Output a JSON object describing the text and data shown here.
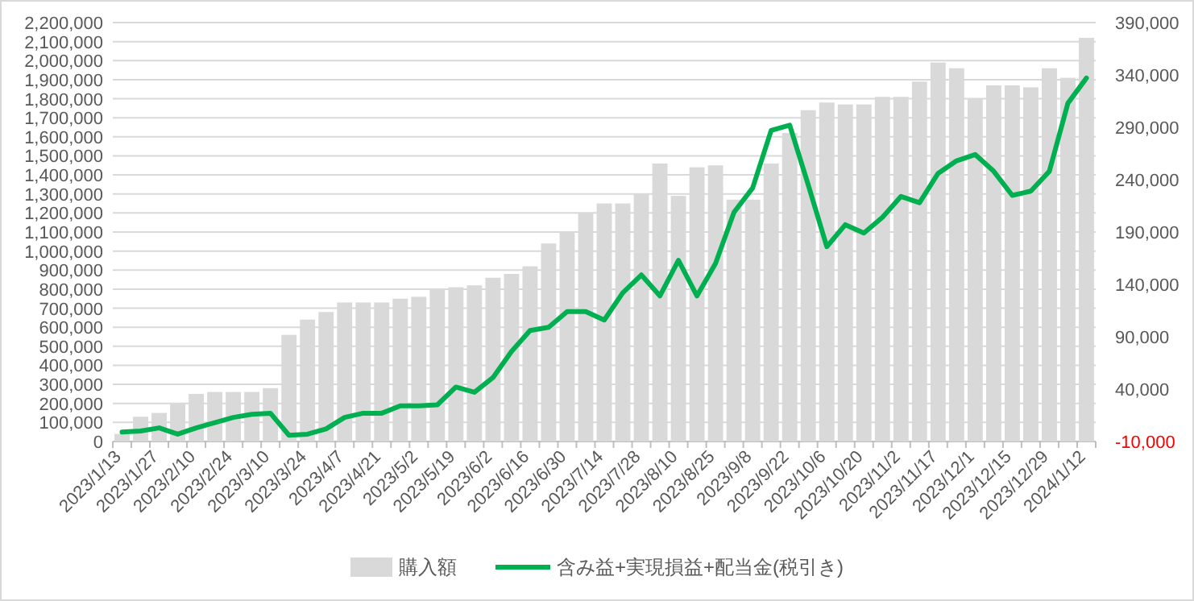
{
  "chart_data": {
    "type": "bar",
    "categories": [
      "2023/1/13",
      null,
      "2023/1/27",
      null,
      "2023/2/10",
      null,
      "2023/2/24",
      null,
      "2023/3/10",
      null,
      "2023/3/24",
      null,
      "2023/4/7",
      null,
      "2023/4/21",
      null,
      "2023/5/2",
      null,
      "2023/5/19",
      null,
      "2023/6/2",
      null,
      "2023/6/16",
      null,
      "2023/6/30",
      null,
      "2023/7/14",
      null,
      "2023/7/28",
      null,
      "2023/8/10",
      null,
      "2023/8/25",
      null,
      "2023/9/8",
      null,
      "2023/9/22",
      null,
      "2023/10/6",
      null,
      "2023/10/20",
      null,
      "2023/11/2",
      null,
      "2023/11/17",
      null,
      "2023/12/1",
      null,
      "2023/12/15",
      null,
      "2023/12/29",
      null,
      "2024/1/12"
    ],
    "series": [
      {
        "name": "購入額",
        "color": "#d9d9d9",
        "values": [
          40000,
          130000,
          150000,
          200000,
          250000,
          260000,
          260000,
          260000,
          280000,
          560000,
          640000,
          680000,
          730000,
          730000,
          730000,
          750000,
          760000,
          800000,
          810000,
          820000,
          860000,
          880000,
          920000,
          1040000,
          1100000,
          1200000,
          1250000,
          1250000,
          1300000,
          1460000,
          1290000,
          1440000,
          1450000,
          1270000,
          1270000,
          1460000,
          1620000,
          1740000,
          1780000,
          1770000,
          1770000,
          1810000,
          1810000,
          1890000,
          1990000,
          1960000,
          1800000,
          1870000,
          1870000,
          1860000,
          1960000,
          1910000,
          2120000
        ]
      },
      {
        "name": "含み益+実現損益+配当金(税引き)",
        "type": "line",
        "axis": "y2",
        "color": "#00b050",
        "values": [
          -1000,
          0,
          3000,
          -3000,
          3000,
          8000,
          13000,
          16000,
          17000,
          -4000,
          -3000,
          2000,
          13000,
          17000,
          17000,
          24000,
          24000,
          25000,
          42000,
          37000,
          51000,
          76000,
          96000,
          99000,
          114000,
          114000,
          106000,
          132000,
          149000,
          129000,
          163000,
          129000,
          160000,
          209000,
          232000,
          287000,
          292000,
          235000,
          176000,
          197000,
          189000,
          204000,
          224000,
          218000,
          246000,
          258000,
          264000,
          248000,
          225000,
          229000,
          248000,
          313000,
          337000
        ]
      }
    ],
    "ylim": [
      0,
      2200000
    ],
    "yticks": [
      {
        "value": 0,
        "label": "0"
      },
      {
        "value": 100000,
        "label": "100,000"
      },
      {
        "value": 200000,
        "label": "200,000"
      },
      {
        "value": 300000,
        "label": "300,000"
      },
      {
        "value": 400000,
        "label": "400,000"
      },
      {
        "value": 500000,
        "label": "500,000"
      },
      {
        "value": 600000,
        "label": "600,000"
      },
      {
        "value": 700000,
        "label": "700,000"
      },
      {
        "value": 800000,
        "label": "800,000"
      },
      {
        "value": 900000,
        "label": "900,000"
      },
      {
        "value": 1000000,
        "label": "1,000,000"
      },
      {
        "value": 1100000,
        "label": "1,100,000"
      },
      {
        "value": 1200000,
        "label": "1,200,000"
      },
      {
        "value": 1300000,
        "label": "1,300,000"
      },
      {
        "value": 1400000,
        "label": "1,400,000"
      },
      {
        "value": 1500000,
        "label": "1,500,000"
      },
      {
        "value": 1600000,
        "label": "1,600,000"
      },
      {
        "value": 1700000,
        "label": "1,700,000"
      },
      {
        "value": 1800000,
        "label": "1,800,000"
      },
      {
        "value": 1900000,
        "label": "1,900,000"
      },
      {
        "value": 2000000,
        "label": "2,000,000"
      },
      {
        "value": 2100000,
        "label": "2,100,000"
      },
      {
        "value": 2200000,
        "label": "2,200,000"
      }
    ],
    "y2lim": [
      -10000,
      390000
    ],
    "y2ticks": [
      {
        "value": -10000,
        "label": "-10,000"
      },
      {
        "value": 40000,
        "label": "40,000"
      },
      {
        "value": 90000,
        "label": "90,000"
      },
      {
        "value": 140000,
        "label": "140,000"
      },
      {
        "value": 190000,
        "label": "190,000"
      },
      {
        "value": 240000,
        "label": "240,000"
      },
      {
        "value": 290000,
        "label": "290,000"
      },
      {
        "value": 340000,
        "label": "340,000"
      },
      {
        "value": 390000,
        "label": "390,000"
      }
    ],
    "grid": "y",
    "legend": "bottom"
  }
}
